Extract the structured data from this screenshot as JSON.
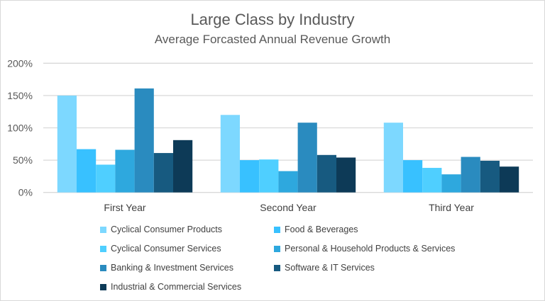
{
  "chart_data": {
    "type": "bar",
    "title": "Large Class by Industry",
    "subtitle": "Average Forcasted Annual Revenue Growth",
    "categories": [
      "First Year",
      "Second Year",
      "Third Year"
    ],
    "ylim": [
      0,
      200
    ],
    "yticks": [
      "0%",
      "50%",
      "100%",
      "150%",
      "200%"
    ],
    "grid": true,
    "legend_position": "bottom",
    "series": [
      {
        "name": "Cyclical Consumer Products",
        "color": "#7dd8ff",
        "values": [
          150,
          120,
          108
        ]
      },
      {
        "name": "Food & Beverages",
        "color": "#38c1ff",
        "values": [
          67,
          50,
          50
        ]
      },
      {
        "name": "Cyclical Consumer Services",
        "color": "#4fcfff",
        "values": [
          43,
          51,
          38
        ]
      },
      {
        "name": "Personal & Household Products & Services",
        "color": "#2ea8de",
        "values": [
          66,
          33,
          28
        ]
      },
      {
        "name": "Banking & Investment Services",
        "color": "#2a8bbf",
        "values": [
          161,
          108,
          55
        ]
      },
      {
        "name": "Software & IT Services",
        "color": "#175a80",
        "values": [
          61,
          58,
          49
        ]
      },
      {
        "name": "Industrial & Commercial Services",
        "color": "#0d3a57",
        "values": [
          81,
          54,
          40
        ]
      }
    ]
  }
}
